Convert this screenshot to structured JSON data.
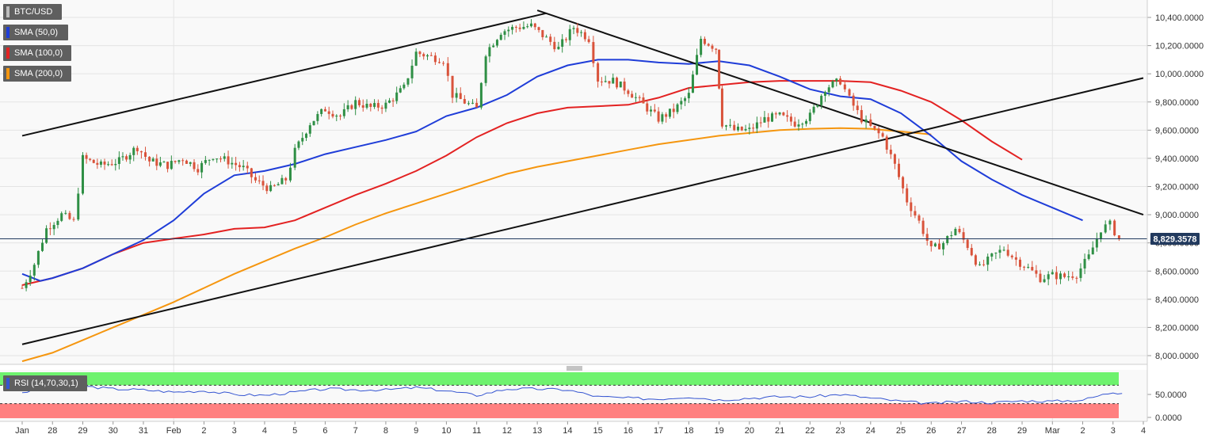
{
  "legend": {
    "symbol": "BTC/USD",
    "indicators": [
      {
        "label": "SMA (50,0)",
        "color": "#1f3dd8"
      },
      {
        "label": "SMA (100,0)",
        "color": "#e32222"
      },
      {
        "label": "SMA (200,0)",
        "color": "#f5960f"
      }
    ],
    "rsi_label": "RSI (14,70,30,1)"
  },
  "colors": {
    "up": "#2f8f45",
    "down": "#d9533b",
    "rsi_line": "#3454d1",
    "overbought_zone": "#6ef26e",
    "oversold_zone": "#ff8080",
    "trendline": "#111111"
  },
  "chart_data": {
    "type": "candlestick",
    "title": "",
    "y_axis": {
      "min": 7950,
      "max": 10450,
      "ticks": [
        "10,400.0000",
        "10,200.0000",
        "10,000.0000",
        "9,800.0000",
        "9,600.0000",
        "9,400.0000",
        "9,200.0000",
        "9,000.0000",
        "8,800.0000",
        "8,600.0000",
        "8,400.0000",
        "8,200.0000",
        "8,000.0000"
      ]
    },
    "last_price": {
      "value": 8829.3578,
      "label": "8,829.3578"
    },
    "x_axis": {
      "labels": [
        "Jan",
        "28",
        "29",
        "30",
        "31",
        "Feb",
        "2",
        "3",
        "4",
        "5",
        "6",
        "7",
        "8",
        "9",
        "10",
        "11",
        "12",
        "13",
        "14",
        "15",
        "16",
        "17",
        "18",
        "19",
        "20",
        "21",
        "22",
        "23",
        "24",
        "25",
        "26",
        "27",
        "28",
        "29",
        "Mar",
        "2",
        "3",
        "4"
      ],
      "tick_values": [
        27,
        28,
        29,
        30,
        31,
        32,
        33,
        34,
        35,
        36,
        37,
        38,
        39,
        40,
        41,
        42,
        43,
        44,
        45,
        46,
        47,
        48,
        49,
        50,
        51,
        52,
        53,
        54,
        55,
        56,
        57,
        58,
        59,
        60,
        61,
        62,
        63,
        64
      ]
    },
    "close_path": [
      {
        "d": 27.0,
        "v": 8480
      },
      {
        "d": 27.4,
        "v": 8650
      },
      {
        "d": 27.8,
        "v": 8900
      },
      {
        "d": 28.3,
        "v": 9000
      },
      {
        "d": 28.7,
        "v": 8950
      },
      {
        "d": 29.0,
        "v": 9400
      },
      {
        "d": 29.6,
        "v": 9350
      },
      {
        "d": 30.2,
        "v": 9380
      },
      {
        "d": 30.8,
        "v": 9480
      },
      {
        "d": 31.2,
        "v": 9380
      },
      {
        "d": 31.8,
        "v": 9350
      },
      {
        "d": 32.3,
        "v": 9400
      },
      {
        "d": 32.8,
        "v": 9330
      },
      {
        "d": 33.3,
        "v": 9420
      },
      {
        "d": 33.8,
        "v": 9380
      },
      {
        "d": 34.3,
        "v": 9330
      },
      {
        "d": 34.7,
        "v": 9240
      },
      {
        "d": 35.2,
        "v": 9180
      },
      {
        "d": 35.7,
        "v": 9250
      },
      {
        "d": 36.0,
        "v": 9450
      },
      {
        "d": 36.5,
        "v": 9650
      },
      {
        "d": 37.0,
        "v": 9750
      },
      {
        "d": 37.5,
        "v": 9700
      },
      {
        "d": 38.0,
        "v": 9800
      },
      {
        "d": 38.5,
        "v": 9760
      },
      {
        "d": 39.0,
        "v": 9780
      },
      {
        "d": 39.6,
        "v": 9900
      },
      {
        "d": 40.0,
        "v": 10150
      },
      {
        "d": 40.5,
        "v": 10120
      },
      {
        "d": 40.9,
        "v": 10100
      },
      {
        "d": 41.2,
        "v": 9850
      },
      {
        "d": 41.6,
        "v": 9800
      },
      {
        "d": 42.0,
        "v": 9750
      },
      {
        "d": 42.3,
        "v": 10150
      },
      {
        "d": 42.8,
        "v": 10300
      },
      {
        "d": 43.3,
        "v": 10330
      },
      {
        "d": 43.8,
        "v": 10340
      },
      {
        "d": 44.3,
        "v": 10250
      },
      {
        "d": 44.7,
        "v": 10180
      },
      {
        "d": 45.2,
        "v": 10330
      },
      {
        "d": 45.7,
        "v": 10250
      },
      {
        "d": 46.0,
        "v": 9960
      },
      {
        "d": 46.5,
        "v": 9950
      },
      {
        "d": 47.0,
        "v": 9880
      },
      {
        "d": 47.5,
        "v": 9780
      },
      {
        "d": 48.0,
        "v": 9680
      },
      {
        "d": 48.5,
        "v": 9740
      },
      {
        "d": 49.0,
        "v": 9850
      },
      {
        "d": 49.4,
        "v": 10250
      },
      {
        "d": 49.9,
        "v": 10180
      },
      {
        "d": 50.1,
        "v": 9650
      },
      {
        "d": 50.5,
        "v": 9600
      },
      {
        "d": 51.0,
        "v": 9600
      },
      {
        "d": 51.5,
        "v": 9680
      },
      {
        "d": 52.0,
        "v": 9700
      },
      {
        "d": 52.5,
        "v": 9650
      },
      {
        "d": 53.0,
        "v": 9700
      },
      {
        "d": 53.5,
        "v": 9900
      },
      {
        "d": 54.0,
        "v": 9950
      },
      {
        "d": 54.3,
        "v": 9820
      },
      {
        "d": 54.7,
        "v": 9680
      },
      {
        "d": 55.0,
        "v": 9620
      },
      {
        "d": 55.4,
        "v": 9550
      },
      {
        "d": 55.8,
        "v": 9350
      },
      {
        "d": 56.2,
        "v": 9100
      },
      {
        "d": 56.6,
        "v": 8950
      },
      {
        "d": 57.0,
        "v": 8750
      },
      {
        "d": 57.4,
        "v": 8800
      },
      {
        "d": 57.8,
        "v": 8900
      },
      {
        "d": 58.2,
        "v": 8780
      },
      {
        "d": 58.6,
        "v": 8620
      },
      {
        "d": 59.0,
        "v": 8700
      },
      {
        "d": 59.4,
        "v": 8760
      },
      {
        "d": 59.8,
        "v": 8680
      },
      {
        "d": 60.2,
        "v": 8620
      },
      {
        "d": 60.6,
        "v": 8550
      },
      {
        "d": 61.0,
        "v": 8570
      },
      {
        "d": 61.4,
        "v": 8560
      },
      {
        "d": 61.8,
        "v": 8580
      },
      {
        "d": 62.2,
        "v": 8700
      },
      {
        "d": 62.6,
        "v": 8900
      },
      {
        "d": 62.9,
        "v": 8930
      },
      {
        "d": 63.2,
        "v": 8829
      }
    ],
    "sma_50": [
      [
        27.0,
        8580
      ],
      [
        27.6,
        8530
      ],
      [
        28.0,
        8550
      ],
      [
        29.0,
        8620
      ],
      [
        30.0,
        8720
      ],
      [
        31.0,
        8820
      ],
      [
        32.0,
        8960
      ],
      [
        33.0,
        9150
      ],
      [
        34.0,
        9280
      ],
      [
        35.0,
        9310
      ],
      [
        36.0,
        9360
      ],
      [
        37.0,
        9430
      ],
      [
        38.0,
        9480
      ],
      [
        39.0,
        9530
      ],
      [
        40.0,
        9590
      ],
      [
        41.0,
        9700
      ],
      [
        42.0,
        9760
      ],
      [
        43.0,
        9850
      ],
      [
        44.0,
        9980
      ],
      [
        45.0,
        10060
      ],
      [
        46.0,
        10100
      ],
      [
        47.0,
        10100
      ],
      [
        48.0,
        10080
      ],
      [
        49.0,
        10070
      ],
      [
        50.0,
        10090
      ],
      [
        51.0,
        10060
      ],
      [
        52.0,
        9980
      ],
      [
        53.0,
        9890
      ],
      [
        54.0,
        9840
      ],
      [
        55.0,
        9820
      ],
      [
        56.0,
        9720
      ],
      [
        57.0,
        9560
      ],
      [
        58.0,
        9380
      ],
      [
        59.0,
        9250
      ],
      [
        60.0,
        9140
      ],
      [
        61.0,
        9050
      ],
      [
        62.0,
        8960
      ]
    ],
    "sma_100": [
      [
        27.0,
        8500
      ],
      [
        28.0,
        8550
      ],
      [
        29.0,
        8620
      ],
      [
        30.0,
        8720
      ],
      [
        31.0,
        8800
      ],
      [
        32.0,
        8830
      ],
      [
        33.0,
        8860
      ],
      [
        34.0,
        8900
      ],
      [
        35.0,
        8910
      ],
      [
        36.0,
        8960
      ],
      [
        37.0,
        9050
      ],
      [
        38.0,
        9140
      ],
      [
        39.0,
        9220
      ],
      [
        40.0,
        9310
      ],
      [
        41.0,
        9420
      ],
      [
        42.0,
        9550
      ],
      [
        43.0,
        9650
      ],
      [
        44.0,
        9720
      ],
      [
        45.0,
        9760
      ],
      [
        46.0,
        9770
      ],
      [
        47.0,
        9780
      ],
      [
        48.0,
        9830
      ],
      [
        49.0,
        9900
      ],
      [
        50.0,
        9920
      ],
      [
        51.0,
        9940
      ],
      [
        52.0,
        9950
      ],
      [
        53.0,
        9950
      ],
      [
        54.0,
        9950
      ],
      [
        55.0,
        9940
      ],
      [
        56.0,
        9880
      ],
      [
        57.0,
        9800
      ],
      [
        58.0,
        9670
      ],
      [
        59.0,
        9520
      ],
      [
        60.0,
        9390
      ]
    ],
    "sma_200": [
      [
        27.0,
        7960
      ],
      [
        28.0,
        8020
      ],
      [
        29.0,
        8110
      ],
      [
        30.0,
        8200
      ],
      [
        31.0,
        8290
      ],
      [
        32.0,
        8380
      ],
      [
        33.0,
        8480
      ],
      [
        34.0,
        8580
      ],
      [
        35.0,
        8670
      ],
      [
        36.0,
        8760
      ],
      [
        37.0,
        8840
      ],
      [
        38.0,
        8930
      ],
      [
        39.0,
        9010
      ],
      [
        40.0,
        9080
      ],
      [
        41.0,
        9150
      ],
      [
        42.0,
        9220
      ],
      [
        43.0,
        9290
      ],
      [
        44.0,
        9340
      ],
      [
        45.0,
        9380
      ],
      [
        46.0,
        9420
      ],
      [
        47.0,
        9460
      ],
      [
        48.0,
        9500
      ],
      [
        49.0,
        9530
      ],
      [
        50.0,
        9560
      ],
      [
        51.0,
        9580
      ],
      [
        52.0,
        9600
      ],
      [
        53.0,
        9610
      ],
      [
        54.0,
        9615
      ],
      [
        55.0,
        9610
      ],
      [
        56.0,
        9590
      ],
      [
        57.0,
        9570
      ]
    ],
    "trendlines": [
      {
        "from": [
          27.0,
          9560
        ],
        "to": [
          44.3,
          10430
        ]
      },
      {
        "from": [
          27.0,
          8080
        ],
        "to": [
          64.0,
          9970
        ]
      },
      {
        "from": [
          44.0,
          10450
        ],
        "to": [
          64.0,
          9000
        ]
      }
    ],
    "rsi": {
      "range": [
        0,
        100
      ],
      "ticks": [
        "50.0000",
        "0.0000"
      ],
      "overbought": 70,
      "oversold": 30,
      "values": [
        [
          27,
          55
        ],
        [
          28,
          62
        ],
        [
          29,
          68
        ],
        [
          30,
          62
        ],
        [
          31,
          60
        ],
        [
          32,
          55
        ],
        [
          33,
          58
        ],
        [
          34,
          50
        ],
        [
          35,
          48
        ],
        [
          36,
          55
        ],
        [
          37,
          62
        ],
        [
          38,
          60
        ],
        [
          39,
          60
        ],
        [
          40,
          65
        ],
        [
          41,
          58
        ],
        [
          42,
          48
        ],
        [
          43,
          62
        ],
        [
          44,
          62
        ],
        [
          45,
          60
        ],
        [
          46,
          45
        ],
        [
          47,
          42
        ],
        [
          48,
          40
        ],
        [
          49,
          45
        ],
        [
          50,
          38
        ],
        [
          51,
          42
        ],
        [
          52,
          45
        ],
        [
          53,
          45
        ],
        [
          54,
          50
        ],
        [
          55,
          42
        ],
        [
          56,
          35
        ],
        [
          57,
          30
        ],
        [
          58,
          35
        ],
        [
          59,
          32
        ],
        [
          60,
          36
        ],
        [
          61,
          35
        ],
        [
          62,
          38
        ],
        [
          63,
          55
        ],
        [
          63.3,
          52
        ]
      ]
    }
  }
}
